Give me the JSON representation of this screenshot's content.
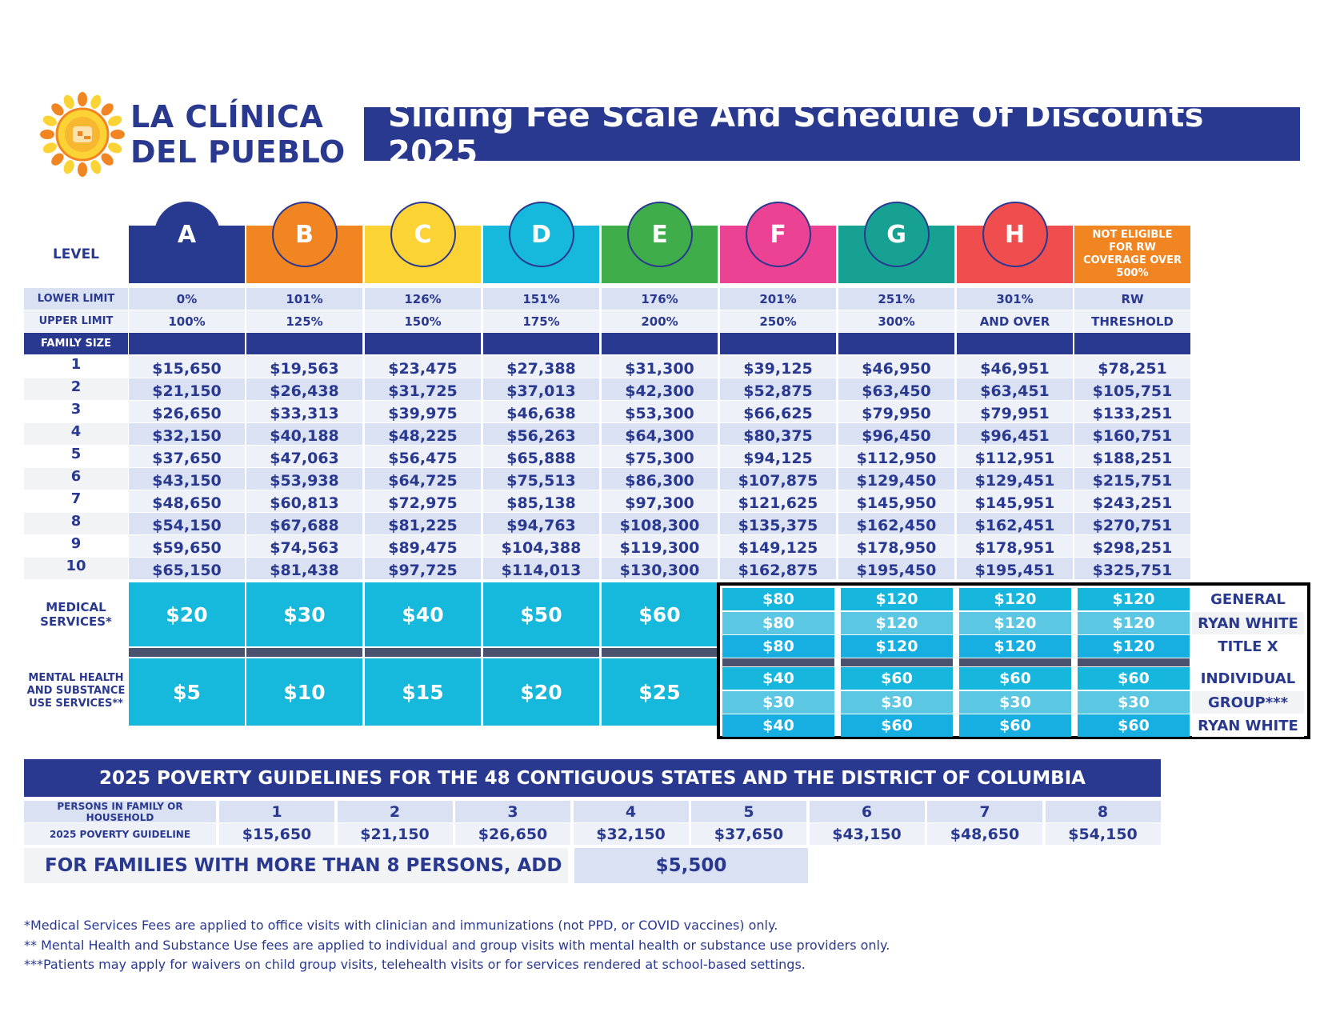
{
  "logo": {
    "line1": "LA CLÍNICA",
    "line2": "DEL PUEBLO"
  },
  "title": "Sliding Fee Scale And Schedule Of Discounts 2025",
  "levels": {
    "label": "LEVEL",
    "items": [
      {
        "letter": "A",
        "color": "#283a8f"
      },
      {
        "letter": "B",
        "color": "#f18521"
      },
      {
        "letter": "C",
        "color": "#fcd335"
      },
      {
        "letter": "D",
        "color": "#16b9db"
      },
      {
        "letter": "E",
        "color": "#3fad49"
      },
      {
        "letter": "F",
        "color": "#ec4294"
      },
      {
        "letter": "G",
        "color": "#17a193"
      },
      {
        "letter": "H",
        "color": "#ef4d4e"
      }
    ],
    "not_eligible": {
      "text": "NOT ELIGIBLE FOR RW COVERAGE OVER 500%",
      "color": "#f18521"
    }
  },
  "limits": {
    "lower_label": "LOWER LIMIT",
    "upper_label": "UPPER LIMIT",
    "lower": [
      "0%",
      "101%",
      "126%",
      "151%",
      "176%",
      "201%",
      "251%",
      "301%",
      "RW"
    ],
    "upper": [
      "100%",
      "125%",
      "150%",
      "175%",
      "200%",
      "250%",
      "300%",
      "AND OVER",
      "THRESHOLD"
    ]
  },
  "family_size_label": "FAMILY SIZE",
  "income_rows": [
    {
      "size": "1",
      "values": [
        "$15,650",
        "$19,563",
        "$23,475",
        "$27,388",
        "$31,300",
        "$39,125",
        "$46,950",
        "$46,951",
        "$78,251"
      ]
    },
    {
      "size": "2",
      "values": [
        "$21,150",
        "$26,438",
        "$31,725",
        "$37,013",
        "$42,300",
        "$52,875",
        "$63,450",
        "$63,451",
        "$105,751"
      ]
    },
    {
      "size": "3",
      "values": [
        "$26,650",
        "$33,313",
        "$39,975",
        "$46,638",
        "$53,300",
        "$66,625",
        "$79,950",
        "$79,951",
        "$133,251"
      ]
    },
    {
      "size": "4",
      "values": [
        "$32,150",
        "$40,188",
        "$48,225",
        "$56,263",
        "$64,300",
        "$80,375",
        "$96,450",
        "$96,451",
        "$160,751"
      ]
    },
    {
      "size": "5",
      "values": [
        "$37,650",
        "$47,063",
        "$56,475",
        "$65,888",
        "$75,300",
        "$94,125",
        "$112,950",
        "$112,951",
        "$188,251"
      ]
    },
    {
      "size": "6",
      "values": [
        "$43,150",
        "$53,938",
        "$64,725",
        "$75,513",
        "$86,300",
        "$107,875",
        "$129,450",
        "$129,451",
        "$215,751"
      ]
    },
    {
      "size": "7",
      "values": [
        "$48,650",
        "$60,813",
        "$72,975",
        "$85,138",
        "$97,300",
        "$121,625",
        "$145,950",
        "$145,951",
        "$243,251"
      ]
    },
    {
      "size": "8",
      "values": [
        "$54,150",
        "$67,688",
        "$81,225",
        "$94,763",
        "$108,300",
        "$135,375",
        "$162,450",
        "$162,451",
        "$270,751"
      ]
    },
    {
      "size": "9",
      "values": [
        "$59,650",
        "$74,563",
        "$89,475",
        "$104,388",
        "$119,300",
        "$149,125",
        "$178,950",
        "$178,951",
        "$298,251"
      ]
    },
    {
      "size": "10",
      "values": [
        "$65,150",
        "$81,438",
        "$97,725",
        "$114,013",
        "$130,300",
        "$162,875",
        "$195,450",
        "$195,451",
        "$325,751"
      ]
    }
  ],
  "medical": {
    "label": "MEDICAL SERVICES*",
    "fees": [
      "$20",
      "$30",
      "$40",
      "$50",
      "$60"
    ]
  },
  "mental": {
    "label": "MENTAL HEALTH AND SUBSTANCE USE SERVICES**",
    "fees": [
      "$5",
      "$10",
      "$15",
      "$20",
      "$25"
    ]
  },
  "box_rows": [
    {
      "label": "GENERAL",
      "fees": [
        "$80",
        "$120",
        "$120",
        "$120"
      ]
    },
    {
      "label": "RYAN WHITE",
      "fees": [
        "$80",
        "$120",
        "$120",
        "$120"
      ]
    },
    {
      "label": "TITLE X",
      "fees": [
        "$80",
        "$120",
        "$120",
        "$120"
      ]
    },
    {
      "label": "INDIVIDUAL",
      "fees": [
        "$40",
        "$60",
        "$60",
        "$60"
      ]
    },
    {
      "label": "GROUP***",
      "fees": [
        "$30",
        "$30",
        "$30",
        "$30"
      ]
    },
    {
      "label": "RYAN WHITE",
      "fees": [
        "$40",
        "$60",
        "$60",
        "$60"
      ]
    }
  ],
  "poverty": {
    "title": "2025 POVERTY GUIDELINES FOR THE 48 CONTIGUOUS STATES AND THE DISTRICT OF COLUMBIA",
    "persons_label": "PERSONS IN FAMILY OR HOUSEHOLD",
    "guideline_label": "2025 POVERTY GUIDELINE",
    "persons": [
      "1",
      "2",
      "3",
      "4",
      "5",
      "6",
      "7",
      "8"
    ],
    "guidelines": [
      "$15,650",
      "$21,150",
      "$26,650",
      "$32,150",
      "$37,650",
      "$43,150",
      "$48,650",
      "$54,150"
    ],
    "more_label": "FOR FAMILIES WITH MORE THAN 8 PERSONS, ADD",
    "more_value": "$5,500"
  },
  "footnotes": [
    "*Medical Services Fees are applied to office visits with clinician and immunizations (not PPD, or COVID vaccines) only.",
    "** Mental Health and Substance Use fees are applied to individual and group visits with mental health or substance use providers only.",
    "***Patients may apply for waivers on child group visits, telehealth visits or for services rendered at school-based settings."
  ]
}
